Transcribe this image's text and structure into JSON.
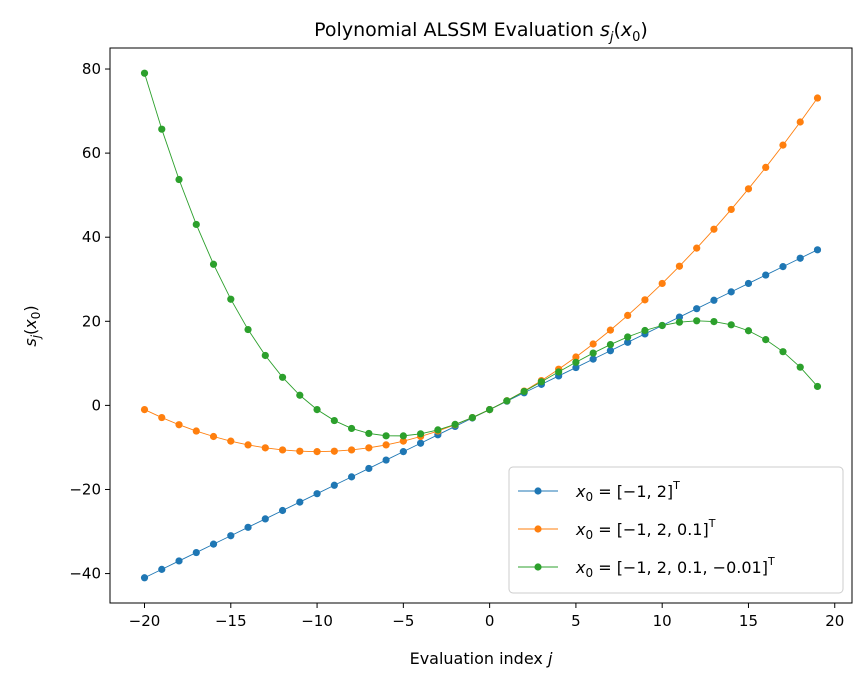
{
  "chart_data": {
    "type": "line",
    "title": "Polynomial ALSSM Evaluation s_j(x_0)",
    "title_parts": {
      "prefix": "Polynomial ALSSM Evaluation ",
      "s": "s",
      "sub_j": "j",
      "open": "(",
      "x": "x",
      "sub_0": "0",
      "close": ")"
    },
    "xlabel": "Evaluation index j",
    "xlabel_parts": {
      "text": "Evaluation index ",
      "var": "j"
    },
    "ylabel": "s_j(x_0)",
    "ylabel_parts": {
      "s": "s",
      "sub_j": "j",
      "open": "(",
      "x": "x",
      "sub_0": "0",
      "close": ")"
    },
    "xlim": [
      -22,
      21
    ],
    "ylim": [
      -47,
      85
    ],
    "xticks": [
      -20,
      -15,
      -10,
      -5,
      0,
      5,
      10,
      15,
      20
    ],
    "xtick_labels": [
      "−20",
      "−15",
      "−10",
      "−5",
      "0",
      "5",
      "10",
      "15",
      "20"
    ],
    "yticks": [
      -40,
      -20,
      0,
      20,
      40,
      60,
      80
    ],
    "ytick_labels": [
      "−40",
      "−20",
      "0",
      "20",
      "40",
      "60",
      "80"
    ],
    "grid": false,
    "legend_position": "lower-right",
    "x": [
      -20,
      -19,
      -18,
      -17,
      -16,
      -15,
      -14,
      -13,
      -12,
      -11,
      -10,
      -9,
      -8,
      -7,
      -6,
      -5,
      -4,
      -3,
      -2,
      -1,
      0,
      1,
      2,
      3,
      4,
      5,
      6,
      7,
      8,
      9,
      10,
      11,
      12,
      13,
      14,
      15,
      16,
      17,
      18,
      19
    ],
    "series": [
      {
        "legend_text": "x_0 = [−1, 2]^T",
        "color": "#1f77b4",
        "values": [
          -41,
          -39,
          -37,
          -35,
          -33,
          -31,
          -29,
          -27,
          -25,
          -23,
          -21,
          -19,
          -17,
          -15,
          -13,
          -11,
          -9,
          -7,
          -5,
          -3,
          -1,
          1,
          3,
          5,
          7,
          9,
          11,
          13,
          15,
          17,
          19,
          21,
          23,
          25,
          27,
          29,
          31,
          33,
          35,
          37
        ]
      },
      {
        "legend_text": "x_0 = [−1, 2, 0.1]^T",
        "color": "#ff7f0e",
        "values": [
          -1,
          -2.9,
          -4.6,
          -6.1,
          -7.4,
          -8.5,
          -9.4,
          -10.1,
          -10.6,
          -10.9,
          -11,
          -10.9,
          -10.6,
          -10.1,
          -9.4,
          -8.5,
          -7.4,
          -6.1,
          -4.6,
          -2.9,
          -1,
          1.1,
          3.4,
          5.9,
          8.6,
          11.5,
          14.6,
          17.9,
          21.4,
          25.1,
          29,
          33.1,
          37.4,
          41.9,
          46.6,
          51.5,
          56.6,
          61.9,
          67.4,
          73.1
        ]
      },
      {
        "legend_text": "x_0 = [−1, 2, 0.1, −0.01]^T",
        "color": "#2ca02c",
        "values": [
          79,
          65.69,
          53.72,
          43.03,
          33.56,
          25.25,
          18.04,
          11.87,
          6.68,
          2.41,
          -1,
          -3.61,
          -5.48,
          -6.67,
          -7.24,
          -7.25,
          -6.76,
          -5.83,
          -4.52,
          -2.89,
          -1,
          1.09,
          3.32,
          5.63,
          7.96,
          10.25,
          12.44,
          14.47,
          16.28,
          17.81,
          19,
          19.79,
          20.12,
          19.93,
          19.16,
          17.75,
          15.64,
          12.77,
          9.08,
          4.51
        ]
      }
    ]
  },
  "legend_items": [
    {
      "x": "x",
      "sub": "0",
      "eq": " = [−1, 2]",
      "sup": "T"
    },
    {
      "x": "x",
      "sub": "0",
      "eq": " = [−1, 2, 0.1]",
      "sup": "T"
    },
    {
      "x": "x",
      "sub": "0",
      "eq": " = [−1, 2, 0.1, −0.01]",
      "sup": "T"
    }
  ]
}
